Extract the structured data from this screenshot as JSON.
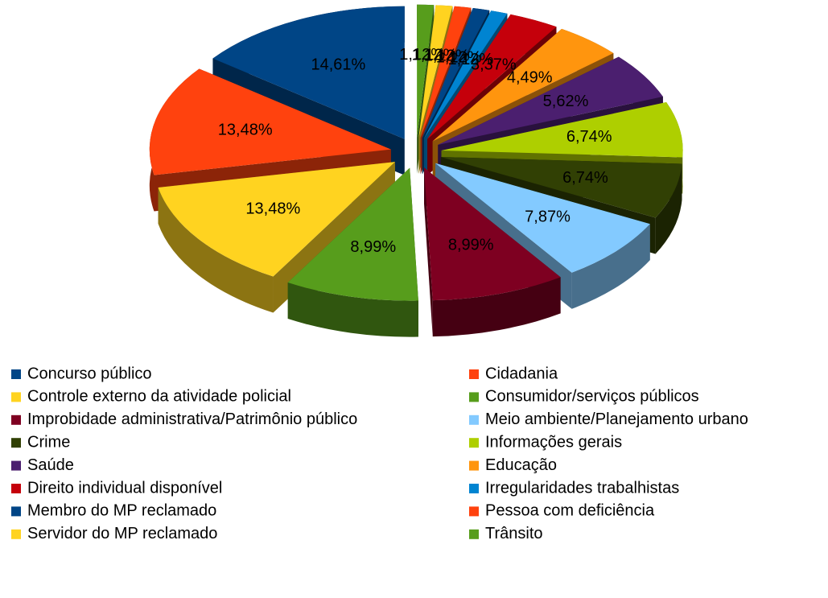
{
  "chart_data": {
    "type": "pie",
    "legend": "bottom",
    "categories": [
      "Concurso público",
      "Cidadania",
      "Controle externo da atividade policial",
      "Consumidor/serviços públicos",
      "Improbidade administrativa/Patrimônio público",
      "Meio ambiente/Planejamento urbano",
      "Crime",
      "Informações gerais",
      "Saúde",
      "Educação",
      "Direito individual disponível",
      "Irregularidades trabalhistas",
      "Membro do MP reclamado",
      "Pessoa com deficiência",
      "Servidor do MP reclamado",
      "Trânsito"
    ],
    "values": [
      14.61,
      13.48,
      13.48,
      8.99,
      8.99,
      7.87,
      6.74,
      6.74,
      5.62,
      4.49,
      3.37,
      1.12,
      1.12,
      1.12,
      1.12,
      1.12
    ],
    "value_labels": [
      "14,61%",
      "13,48%",
      "13,48%",
      "8,99%",
      "8,99%",
      "7,87%",
      "6,74%",
      "6,74%",
      "5,62%",
      "4,49%",
      "3,37%",
      "1,12%",
      "1,12%",
      "1,12%",
      "1,12%",
      "1,12%"
    ],
    "colors": [
      "#004586",
      "#ff420e",
      "#ffd320",
      "#579d1c",
      "#7e0021",
      "#83caff",
      "#314004",
      "#aecf00",
      "#4b1f6f",
      "#ff950e",
      "#c5000b",
      "#0084d1",
      "#004586",
      "#ff420e",
      "#ffd320",
      "#579d1c"
    ]
  }
}
